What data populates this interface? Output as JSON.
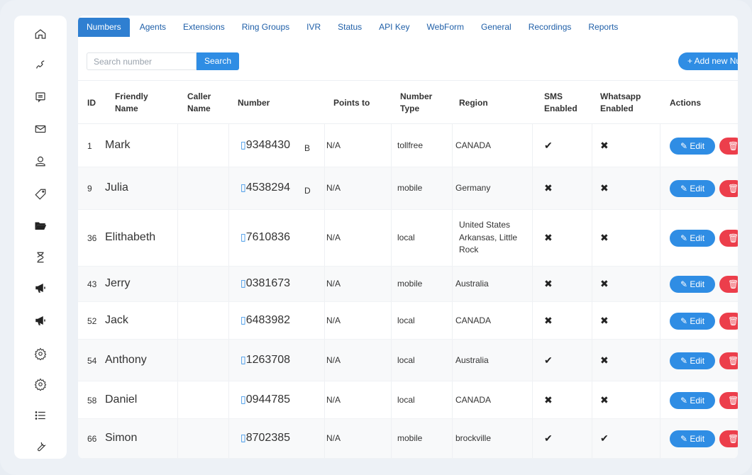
{
  "sidebar": {
    "icons": [
      "home-icon",
      "phone-icon",
      "message-icon",
      "mail-icon",
      "user-icon",
      "tag-icon",
      "folder-icon",
      "hourglass-icon",
      "megaphone-icon",
      "megaphone-icon",
      "settings-icon",
      "settings-icon",
      "list-icon",
      "wrench-icon"
    ]
  },
  "tabs": [
    "Numbers",
    "Agents",
    "Extensions",
    "Ring Groups",
    "IVR",
    "Status",
    "API Key",
    "WebForm",
    "General",
    "Recordings",
    "Reports"
  ],
  "search": {
    "placeholder": "Search number",
    "button": "Search"
  },
  "add_button": "+ Add new Number",
  "table": {
    "headers": {
      "id": "ID",
      "friendly_name": "Friendly Name",
      "caller_name": "Caller Name",
      "number": "Number",
      "points_to": "Points to",
      "number_type": "Number Type",
      "region": "Region",
      "sms": "SMS Enabled",
      "whatsapp": "Whatsapp Enabled",
      "actions": "Actions"
    },
    "rows": [
      {
        "id": "1",
        "name": "Mark",
        "number": "9348430",
        "suffix": "B",
        "points": "N/A",
        "type": "tollfree",
        "region": "CANADA",
        "sms": "check",
        "wa": "cross"
      },
      {
        "id": "9",
        "name": "Julia",
        "number": "4538294",
        "suffix": "D",
        "points": "N/A",
        "type": "mobile",
        "region": "Germany",
        "sms": "cross",
        "wa": "cross"
      },
      {
        "id": "36",
        "name": "Elithabeth",
        "number": "7610836",
        "suffix": "",
        "points": "N/A",
        "type": "local",
        "region": "United States Arkansas, Little Rock",
        "sms": "cross",
        "wa": "cross"
      },
      {
        "id": "43",
        "name": "Jerry",
        "number": "0381673",
        "suffix": "",
        "points": "N/A",
        "type": "mobile",
        "region": "Australia",
        "sms": "cross",
        "wa": "cross"
      },
      {
        "id": "52",
        "name": "Jack",
        "number": "6483982",
        "suffix": "",
        "points": "N/A",
        "type": "local",
        "region": "CANADA",
        "sms": "cross",
        "wa": "cross"
      },
      {
        "id": "54",
        "name": "Anthony",
        "number": "1263708",
        "suffix": "",
        "points": "N/A",
        "type": "local",
        "region": "Australia",
        "sms": "check",
        "wa": "cross"
      },
      {
        "id": "58",
        "name": "Daniel",
        "number": "0944785",
        "suffix": "",
        "points": "N/A",
        "type": "local",
        "region": "CANADA",
        "sms": "cross",
        "wa": "cross"
      },
      {
        "id": "66",
        "name": "Simon",
        "number": "8702385",
        "suffix": "",
        "points": "N/A",
        "type": "mobile",
        "region": "brockville",
        "sms": "check",
        "wa": "check"
      }
    ],
    "edit_label": "Edit"
  },
  "colors": {
    "accent": "#2f8de4",
    "tab_active": "#2f7fd1",
    "danger": "#ec3e4b"
  }
}
